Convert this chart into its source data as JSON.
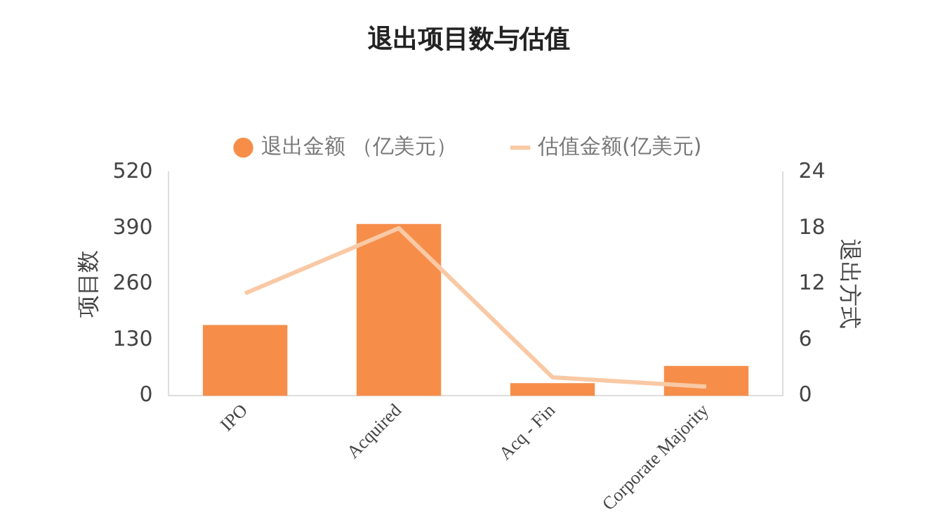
{
  "chart_data": {
    "type": "bar",
    "title": "退出项目数与估值",
    "ylabel": "项目数",
    "y2label": "退出方式",
    "categories": [
      "IPO",
      "Acquired",
      "Acq - Fin",
      "Corporate Majority"
    ],
    "series": [
      {
        "name": "退出金额 （亿美元）",
        "color": "#f68e4a",
        "values": [
          165,
          400,
          30,
          70
        ]
      },
      {
        "name": "估值金额(亿美元)",
        "type": "line",
        "axis": "y2",
        "color": "#f9c9a5",
        "values": [
          11,
          18,
          2,
          1
        ]
      }
    ],
    "ylim": [
      0,
      520
    ],
    "yticks": [
      0,
      130,
      260,
      390,
      520
    ],
    "y2lim": [
      0,
      24
    ],
    "y2ticks": [
      0,
      6,
      12,
      18,
      24
    ],
    "legend": "top",
    "grid": false,
    "marker": "none"
  }
}
